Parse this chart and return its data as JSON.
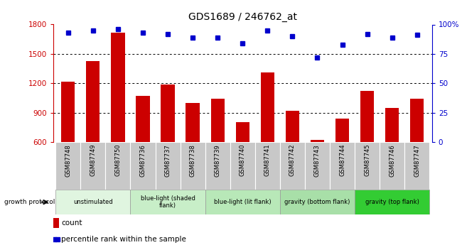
{
  "title": "GDS1689 / 246762_at",
  "samples": [
    "GSM87748",
    "GSM87749",
    "GSM87750",
    "GSM87736",
    "GSM87737",
    "GSM87738",
    "GSM87739",
    "GSM87740",
    "GSM87741",
    "GSM87742",
    "GSM87743",
    "GSM87744",
    "GSM87745",
    "GSM87746",
    "GSM87747"
  ],
  "counts": [
    1220,
    1430,
    1720,
    1070,
    1190,
    1000,
    1040,
    800,
    1310,
    920,
    620,
    840,
    1120,
    950,
    1040
  ],
  "percentiles": [
    93,
    95,
    96,
    93,
    92,
    89,
    89,
    84,
    95,
    90,
    72,
    83,
    92,
    89,
    91
  ],
  "ylim_left": [
    600,
    1800
  ],
  "ylim_right": [
    0,
    100
  ],
  "yticks_left": [
    600,
    900,
    1200,
    1500,
    1800
  ],
  "yticks_right": [
    0,
    25,
    50,
    75,
    100
  ],
  "bar_color": "#cc0000",
  "dot_color": "#0000cc",
  "bar_width": 0.55,
  "groups": [
    {
      "label": "unstimulated",
      "start": 0,
      "end": 3,
      "color": "#e0f5e0"
    },
    {
      "label": "blue-light (shaded\nflank)",
      "start": 3,
      "end": 6,
      "color": "#c8eec8"
    },
    {
      "label": "blue-light (lit flank)",
      "start": 6,
      "end": 9,
      "color": "#b8e8b8"
    },
    {
      "label": "gravity (bottom flank)",
      "start": 9,
      "end": 12,
      "color": "#a8dfa8"
    },
    {
      "label": "gravity (top flank)",
      "start": 12,
      "end": 15,
      "color": "#33cc33"
    }
  ],
  "tick_label_bg": "#c8c8c8",
  "growth_protocol_label": "growth protocol",
  "legend_count_label": "count",
  "legend_pct_label": "percentile rank within the sample",
  "axis_color_left": "#cc0000",
  "axis_color_right": "#0000cc"
}
